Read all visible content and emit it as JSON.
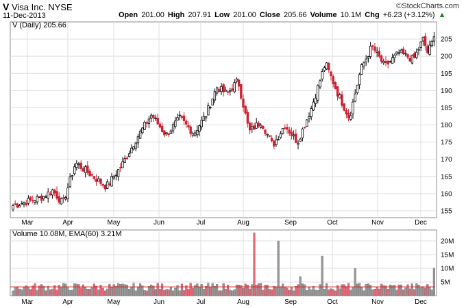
{
  "header": {
    "symbol": "V",
    "company": "Visa Inc.",
    "exchange": "NYSE",
    "date": "11-Dec-2013",
    "brand": "©StockCharts.com",
    "open_label": "Open",
    "open": "201.00",
    "high_label": "High",
    "high": "207.91",
    "low_label": "Low",
    "low": "201.00",
    "close_label": "Close",
    "close": "205.66",
    "volume_label": "Volume",
    "volume": "10.1M",
    "chg_label": "Chg",
    "chg": "+6.23 (+3.12%)"
  },
  "chart_data": [
    {
      "type": "candlestick",
      "legend": "V (Daily) 205.66",
      "ylim": [
        153,
        210
      ],
      "yticks": [
        155,
        160,
        165,
        170,
        175,
        180,
        185,
        190,
        195,
        200,
        205
      ],
      "xticks": [
        "Mar",
        "Apr",
        "May",
        "Jun",
        "Jul",
        "Aug",
        "Sep",
        "Oct",
        "Nov",
        "Dec"
      ],
      "grid": true,
      "anchors": [
        {
          "month": "Mar",
          "close": 156.5
        },
        {
          "month": "Mar",
          "close": 159
        },
        {
          "month": "Mar",
          "close": 161
        },
        {
          "month": "Mar",
          "close": 157
        },
        {
          "month": "Apr",
          "close": 169
        },
        {
          "month": "Apr",
          "close": 165.5
        },
        {
          "month": "Apr",
          "close": 162
        },
        {
          "month": "May",
          "close": 168
        },
        {
          "month": "May",
          "close": 176
        },
        {
          "month": "May",
          "close": 183
        },
        {
          "month": "Jun",
          "close": 177
        },
        {
          "month": "Jun",
          "close": 182
        },
        {
          "month": "Jun",
          "close": 177.5
        },
        {
          "month": "Jul",
          "close": 183
        },
        {
          "month": "Jul",
          "close": 191
        },
        {
          "month": "Jul",
          "close": 189
        },
        {
          "month": "Jul",
          "close": 193
        },
        {
          "month": "Aug",
          "close": 178
        },
        {
          "month": "Aug",
          "close": 181
        },
        {
          "month": "Aug",
          "close": 174
        },
        {
          "month": "Aug",
          "close": 180
        },
        {
          "month": "Sep",
          "close": 175
        },
        {
          "month": "Sep",
          "close": 185
        },
        {
          "month": "Sep",
          "close": 198
        },
        {
          "month": "Oct",
          "close": 189
        },
        {
          "month": "Oct",
          "close": 182
        },
        {
          "month": "Oct",
          "close": 196
        },
        {
          "month": "Oct",
          "close": 203
        },
        {
          "month": "Nov",
          "close": 197
        },
        {
          "month": "Nov",
          "close": 201
        },
        {
          "month": "Nov",
          "close": 199
        },
        {
          "month": "Dec",
          "close": 205
        },
        {
          "month": "Dec",
          "close": 201
        },
        {
          "month": "Dec",
          "close": 205.66
        }
      ]
    },
    {
      "type": "bar",
      "legend": "Volume 10.08M, EMA(60) 3.21M",
      "ylabels": [
        "5M",
        "10M",
        "15M",
        "20M"
      ],
      "yticks": [
        5,
        10,
        15,
        20
      ],
      "ylim": [
        0,
        24
      ],
      "ema": 3.21,
      "base_volume": 3.2,
      "spikes": [
        {
          "month": "Aug",
          "volume": 23
        },
        {
          "month": "Aug",
          "volume": 20
        },
        {
          "month": "Sep",
          "volume": 7
        },
        {
          "month": "Sep",
          "volume": 14.5
        },
        {
          "month": "Oct",
          "volume": 10
        },
        {
          "month": "Dec",
          "volume": 10.08
        }
      ]
    }
  ],
  "colors": {
    "up": "#000000",
    "down": "#cc2233",
    "vol_up": "#999999",
    "vol_down": "#e86a7a",
    "ema": "#cc2222",
    "grid": "#dddddd"
  }
}
